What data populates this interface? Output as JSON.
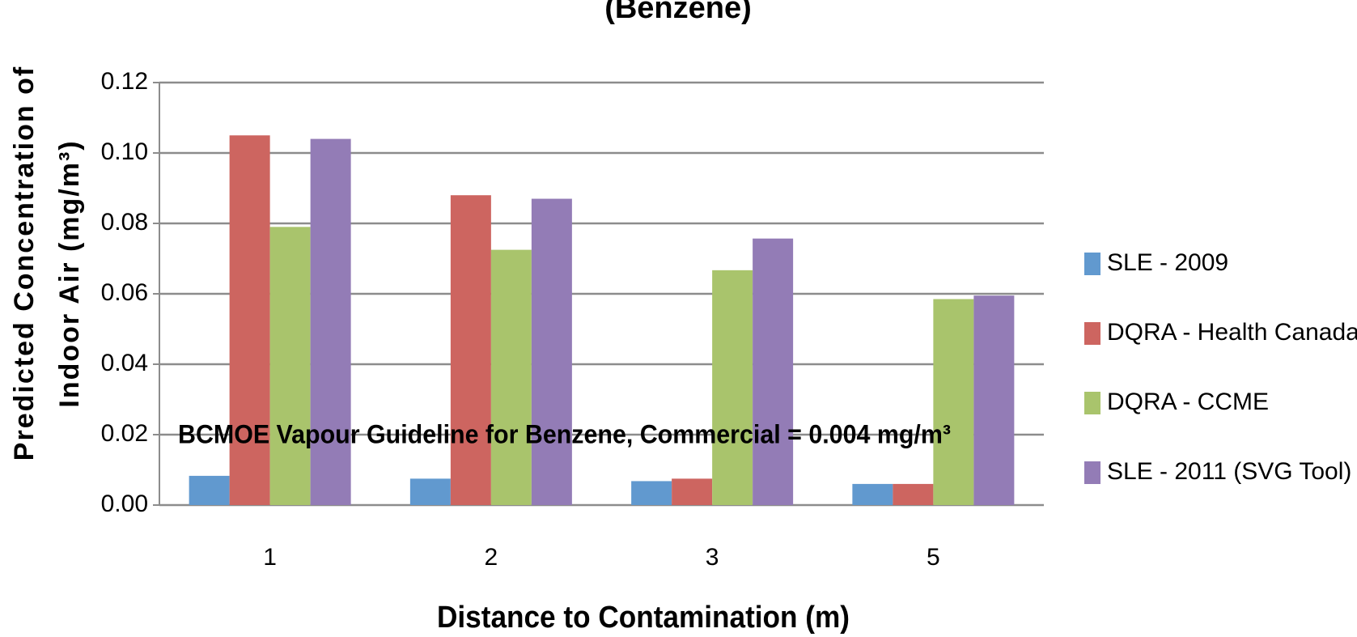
{
  "chart_data": {
    "type": "bar",
    "title": "(Benzene)",
    "y_label_lines": [
      "Predicted Concentration of",
      "Indoor Air (mg/m³)"
    ],
    "x_label": "Distance to Contamination (m)",
    "annotation": "BCMOE Vapour Guideline for Benzene, Commercial = 0.004 mg/m³",
    "categories": [
      "1",
      "2",
      "3",
      "5"
    ],
    "series": [
      {
        "name": "SLE - 2009",
        "color": "#6199cf",
        "values": [
          0.0083,
          0.0075,
          0.0068,
          0.006
        ]
      },
      {
        "name": "DQRA - Health Canada",
        "color": "#cd6560",
        "values": [
          0.105,
          0.088,
          0.0075,
          0.006
        ]
      },
      {
        "name": "DQRA - CCME",
        "color": "#a9c46c",
        "values": [
          0.079,
          0.0725,
          0.0667,
          0.0585
        ]
      },
      {
        "name": "SLE - 2011 (SVG Tool)",
        "color": "#937cb6",
        "values": [
          0.104,
          0.087,
          0.0757,
          0.0595
        ]
      }
    ],
    "ylim": [
      0,
      0.12
    ],
    "yticks": [
      {
        "value": 0,
        "label": "0.00"
      },
      0.02,
      0.04,
      0.06,
      0.08,
      {
        "value": 0.1,
        "label": "0.10"
      },
      0.12
    ],
    "grid": true,
    "legend": "right"
  }
}
